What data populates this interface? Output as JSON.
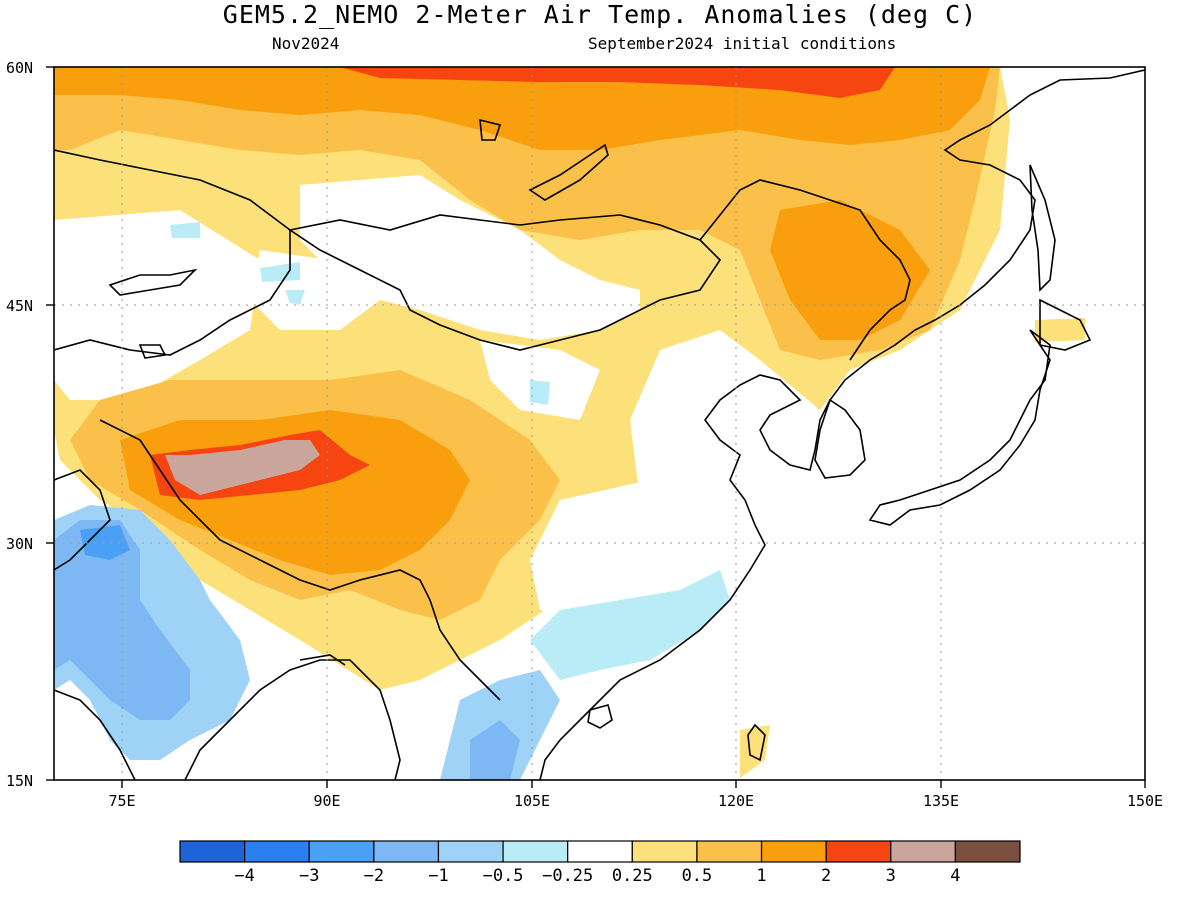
{
  "header": {
    "title": "GEM5.2_NEMO 2-Meter Air Temp. Anomalies (deg C)",
    "valid_month": "Nov2024",
    "init_conditions": "September2024 initial conditions"
  },
  "map": {
    "lat_labels": [
      "60N",
      "45N",
      "30N",
      "15N"
    ],
    "lon_labels": [
      "75E",
      "90E",
      "105E",
      "120E",
      "135E",
      "150E"
    ],
    "extent": {
      "lon_min": 70,
      "lon_max": 150,
      "lat_min": 15,
      "lat_max": 60
    }
  },
  "colorbar": {
    "colors": [
      "#1e64d8",
      "#2b7ff0",
      "#4aa0f5",
      "#7db8f5",
      "#9ed2f7",
      "#b9ecf6",
      "#ffffff",
      "#fce07a",
      "#fbc04a",
      "#f99e0c",
      "#f64510",
      "#c9a59b",
      "#7a4f3f"
    ],
    "labels": [
      "-4",
      "-3",
      "-2",
      "-1",
      "-0.5",
      "-0.25",
      "0.25",
      "0.5",
      "1",
      "2",
      "3",
      "4"
    ]
  },
  "regions": [
    {
      "name": "northern-warm-band",
      "color": "#f99e0c"
    },
    {
      "name": "tibet-hot-core",
      "color": "#f64510"
    },
    {
      "name": "tibet-peak",
      "color": "#c9a59b"
    },
    {
      "name": "india-cool",
      "color": "#7db8f5"
    },
    {
      "name": "southeast-asia-cool",
      "color": "#9ed2f7"
    }
  ]
}
